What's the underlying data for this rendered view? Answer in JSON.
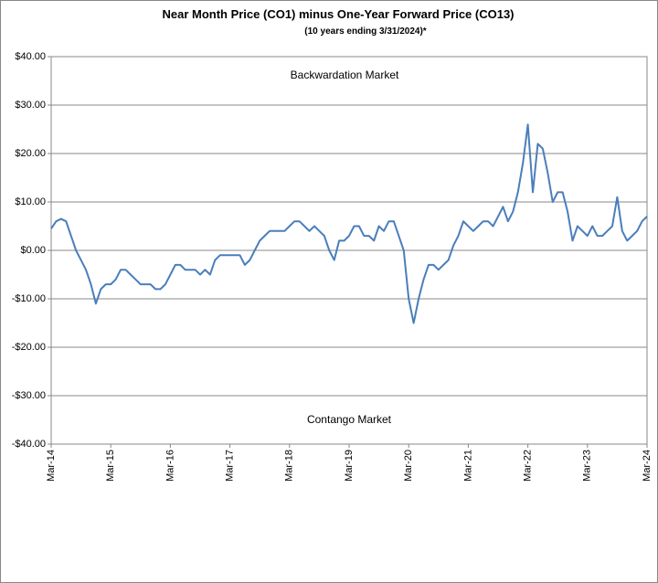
{
  "chart_data": {
    "type": "line",
    "title": "Near Month Price (CO1) minus One-Year Forward Price (CO13)",
    "subtitle": "(10 years ending  3/31/2024)*",
    "annotations": [
      "Backwardation Market",
      "Contango Market"
    ],
    "categories": [
      "Mar-14",
      null,
      null,
      null,
      null,
      null,
      null,
      null,
      null,
      null,
      null,
      null,
      "Mar-15",
      null,
      null,
      null,
      null,
      null,
      null,
      null,
      null,
      null,
      null,
      null,
      "Mar-16",
      null,
      null,
      null,
      null,
      null,
      null,
      null,
      null,
      null,
      null,
      null,
      "Mar-17",
      null,
      null,
      null,
      null,
      null,
      null,
      null,
      null,
      null,
      null,
      null,
      "Mar-18",
      null,
      null,
      null,
      null,
      null,
      null,
      null,
      null,
      null,
      null,
      null,
      "Mar-19",
      null,
      null,
      null,
      null,
      null,
      null,
      null,
      null,
      null,
      null,
      null,
      "Mar-20",
      null,
      null,
      null,
      null,
      null,
      null,
      null,
      null,
      null,
      null,
      null,
      "Mar-21",
      null,
      null,
      null,
      null,
      null,
      null,
      null,
      null,
      null,
      null,
      null,
      "Mar-22",
      null,
      null,
      null,
      null,
      null,
      null,
      null,
      null,
      null,
      null,
      null,
      "Mar-23",
      null,
      null,
      null,
      null,
      null,
      null,
      null,
      null,
      null,
      null,
      null,
      "Mar-24"
    ],
    "series": [
      {
        "name": "CO1 - CO13",
        "color": "#4a7ebb",
        "values": [
          4.5,
          6,
          6.5,
          6,
          3,
          0,
          -2,
          -4,
          -7,
          -11,
          -8,
          -7,
          -7,
          -6,
          -4,
          -4,
          -5,
          -6,
          -7,
          -7,
          -7,
          -8,
          -8,
          -7,
          -5,
          -3,
          -3,
          -4,
          -4,
          -4,
          -5,
          -4,
          -5,
          -2,
          -1,
          -1,
          -1,
          -1,
          -1,
          -3,
          -2,
          0,
          2,
          3,
          4,
          4,
          4,
          4,
          5,
          6,
          6,
          5,
          4,
          5,
          4,
          3,
          0,
          -2,
          2,
          2,
          3,
          5,
          5,
          3,
          3,
          2,
          5,
          4,
          6,
          6,
          3,
          0,
          -10,
          -15,
          -10,
          -6,
          -3,
          -3,
          -4,
          -3,
          -2,
          1,
          3,
          6,
          5,
          4,
          5,
          6,
          6,
          5,
          7,
          9,
          6,
          8,
          12,
          18,
          26,
          12,
          22,
          21,
          16,
          10,
          12,
          12,
          8,
          2,
          5,
          4,
          3,
          5,
          3,
          3,
          4,
          5,
          11,
          4,
          2,
          3,
          4,
          6,
          7
        ]
      }
    ],
    "ylim": [
      -40,
      40
    ],
    "yticks": [
      {
        "value": -40,
        "label": "-$40.00"
      },
      {
        "value": -30,
        "label": "-$30.00"
      },
      {
        "value": -20,
        "label": "-$20.00"
      },
      {
        "value": -10,
        "label": "-$10.00"
      },
      {
        "value": 0,
        "label": "$0.00"
      },
      {
        "value": 10,
        "label": "$10.00"
      },
      {
        "value": 20,
        "label": "$20.00"
      },
      {
        "value": 30,
        "label": "$30.00"
      },
      {
        "value": 40,
        "label": "$40.00"
      }
    ],
    "grid": true
  }
}
